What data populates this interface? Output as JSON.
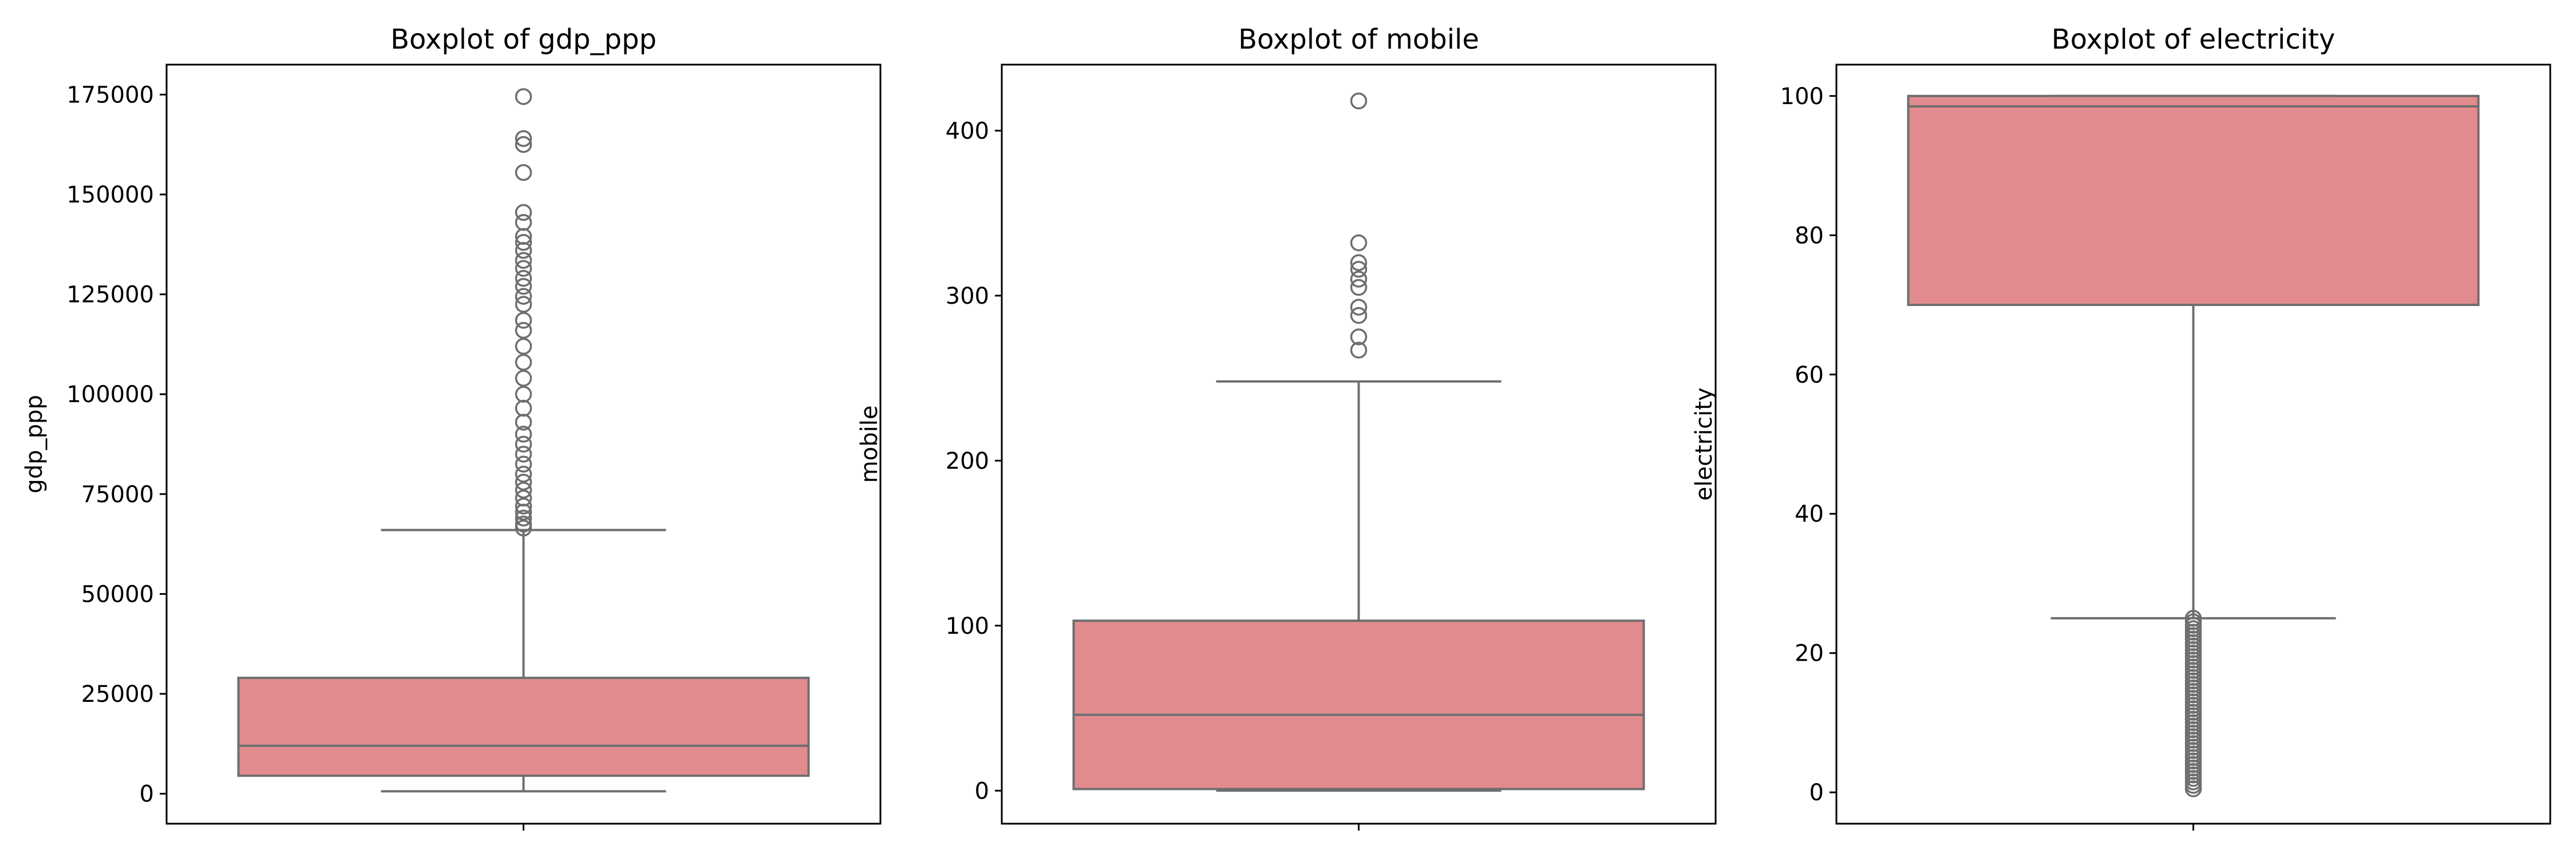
{
  "figure": {
    "box_color": "#e28b8e",
    "line_color": "#6e6e6e"
  },
  "chart_data": [
    {
      "type": "box",
      "title": "Boxplot of gdp_ppp",
      "xlabel": "",
      "ylabel": "gdp_ppp",
      "ylim": [
        -7500,
        182500
      ],
      "yticks": [
        0,
        25000,
        50000,
        75000,
        100000,
        125000,
        150000,
        175000
      ],
      "stats": {
        "whislo": 600,
        "q1": 4500,
        "median": 12000,
        "q3": 29000,
        "whishi": 66000
      },
      "fliers": [
        174500,
        164000,
        162500,
        155500,
        145500,
        143000,
        139500,
        138000,
        136000,
        133500,
        131500,
        129000,
        127000,
        124500,
        122500,
        118500,
        116000,
        112000,
        108000,
        104000,
        100000,
        96500,
        93000,
        90000,
        87500,
        85000,
        82500,
        80000,
        78000,
        76000,
        74000,
        72000,
        70500,
        69000,
        67500,
        66500
      ]
    },
    {
      "type": "box",
      "title": "Boxplot of mobile",
      "xlabel": "",
      "ylabel": "mobile",
      "ylim": [
        -20,
        440
      ],
      "yticks": [
        0,
        100,
        200,
        300,
        400
      ],
      "stats": {
        "whislo": 0,
        "q1": 1,
        "median": 46,
        "q3": 103,
        "whishi": 248
      },
      "fliers": [
        418,
        332,
        320,
        316,
        310,
        305,
        293,
        288,
        275,
        267
      ]
    },
    {
      "type": "box",
      "title": "Boxplot of electricity",
      "xlabel": "",
      "ylabel": "electricity",
      "ylim": [
        -4.5,
        104.5
      ],
      "yticks": [
        0,
        20,
        40,
        60,
        80,
        100
      ],
      "stats": {
        "whislo": 25,
        "q1": 70,
        "median": 98.5,
        "q3": 100,
        "whishi": 100
      },
      "fliers": [
        25,
        24.5,
        24,
        23.5,
        23,
        22.5,
        22,
        21.5,
        21,
        20.5,
        20,
        19.5,
        19,
        18.5,
        18,
        17.5,
        17,
        16.5,
        16,
        15.5,
        15,
        14.5,
        14,
        13.5,
        13,
        12.5,
        12,
        11.5,
        11,
        10.5,
        10,
        9.5,
        9,
        8.5,
        8,
        7.5,
        7,
        6.5,
        6,
        5.5,
        5,
        4.5,
        4,
        3.5,
        3,
        2.5,
        2,
        1.5,
        1,
        0.5
      ]
    }
  ]
}
